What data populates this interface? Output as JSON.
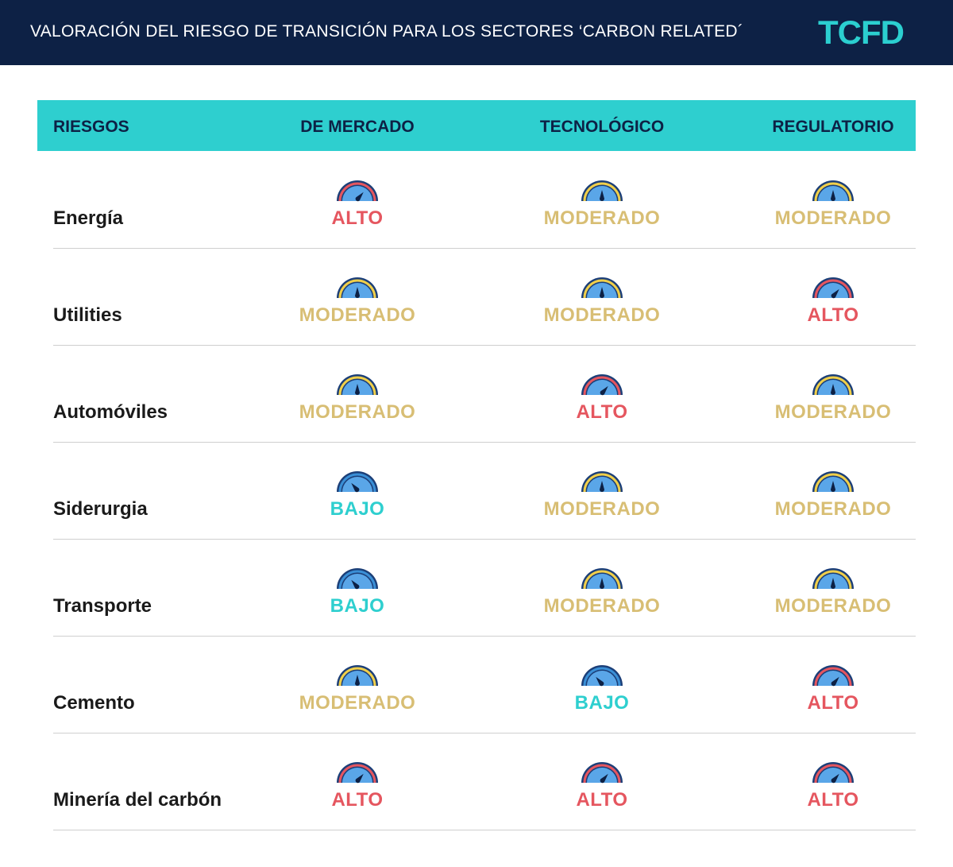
{
  "header": {
    "title": "VALORACIÓN DEL RIESGO DE TRANSICIÓN PARA LOS SECTORES ‘CARBON RELATED´",
    "logo": "TCFD"
  },
  "colors": {
    "topbar": "#0d2145",
    "header_band": "#2ecfcf",
    "alto": "#e5565f",
    "moderado": "#d8be74",
    "bajo": "#2ecfcf"
  },
  "chart_data": {
    "type": "table",
    "columns": [
      "RIESGOS",
      "DE MERCADO",
      "TECNOLÓGICO",
      "REGULATORIO"
    ],
    "rows": [
      {
        "sector": "Energía",
        "values": [
          "ALTO",
          "MODERADO",
          "MODERADO"
        ]
      },
      {
        "sector": "Utilities",
        "values": [
          "MODERADO",
          "MODERADO",
          "ALTO"
        ]
      },
      {
        "sector": "Automóviles",
        "values": [
          "MODERADO",
          "ALTO",
          "MODERADO"
        ]
      },
      {
        "sector": "Siderurgia",
        "values": [
          "BAJO",
          "MODERADO",
          "MODERADO"
        ]
      },
      {
        "sector": "Transporte",
        "values": [
          "BAJO",
          "MODERADO",
          "MODERADO"
        ]
      },
      {
        "sector": "Cemento",
        "values": [
          "MODERADO",
          "BAJO",
          "ALTO"
        ]
      },
      {
        "sector": "Minería del carbón",
        "values": [
          "ALTO",
          "ALTO",
          "ALTO"
        ]
      }
    ]
  }
}
